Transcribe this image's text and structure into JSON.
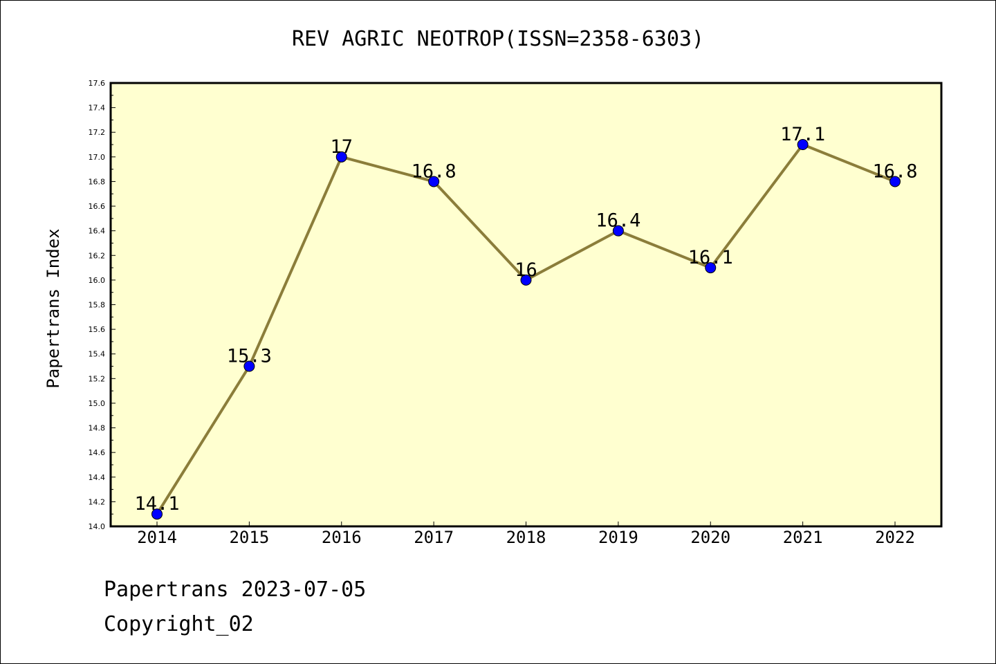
{
  "chart_data": {
    "type": "line",
    "title": "REV AGRIC NEOTROP(ISSN=2358-6303)",
    "xlabel": "",
    "ylabel": "Papertrans Index",
    "categories": [
      "2014",
      "2015",
      "2016",
      "2017",
      "2018",
      "2019",
      "2020",
      "2021",
      "2022"
    ],
    "series": [
      {
        "values": [
          14.1,
          15.3,
          17.0,
          16.8,
          16.0,
          16.4,
          16.1,
          17.1,
          16.8
        ],
        "data_labels": [
          "14.1",
          "15.3",
          "17",
          "16.8",
          "16",
          "16.4",
          "16.1",
          "17.1",
          "16.8"
        ],
        "line_color": "#8b7d3a",
        "marker_color": "#0000ff"
      }
    ],
    "ylim": [
      14.0,
      17.6
    ],
    "yticks": [
      "14.0",
      "14.2",
      "14.4",
      "14.6",
      "14.8",
      "15.0",
      "15.2",
      "15.4",
      "15.6",
      "15.8",
      "16.0",
      "16.2",
      "16.4",
      "16.6",
      "16.8",
      "17.0",
      "17.2",
      "17.4",
      "17.6"
    ],
    "plot_background": "#ffffd0",
    "grid": false,
    "legend": "none"
  },
  "footer": {
    "line1": "Papertrans 2023-07-05",
    "line2": "Copyright_02"
  }
}
